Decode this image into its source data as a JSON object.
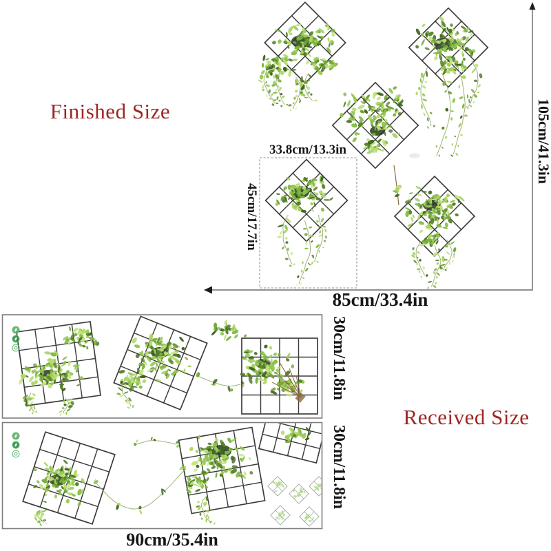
{
  "colors": {
    "background": "#ffffff",
    "label_red": "#9e2723",
    "text_black": "#161616",
    "measure_line": "#6a6a6a",
    "arrow": "#1d1d1d",
    "dash": "#8f8f8f",
    "frame": "#3d3d3d",
    "strip_border": "#7d7d7d",
    "strip_fill": "#ffffff",
    "stem": "#a2b275",
    "twig": "#8a6b42",
    "pot": "#26381e",
    "eco": "#58b368",
    "eco_dark": "#2f8a46",
    "diamond_sketch": "#9aa5a0",
    "speckle": "#b5d98e",
    "smudge": "#e0e0db",
    "leaf_palette": [
      "#3f6420",
      "#557f27",
      "#6fa832",
      "#7db63c",
      "#8bc34a",
      "#9ccc52",
      "#aed763",
      "#c2e27e"
    ]
  },
  "finished": {
    "section_label": "Finished Size",
    "total_height": "105cm/41.3in",
    "total_width": "85cm/33.4in",
    "single_width": "33.8cm/13.3in",
    "single_height": "45cm/17.7in"
  },
  "received": {
    "section_label": "Received Size",
    "sheet_width": "90cm/35.4in",
    "sheets": [
      {
        "height_label": "30cm/11.8in"
      },
      {
        "height_label": "30cm/11.8in"
      }
    ],
    "eco_badges": [
      "leaf-badge-icon",
      "plant-badge-icon",
      "eco-badge-icon"
    ]
  }
}
